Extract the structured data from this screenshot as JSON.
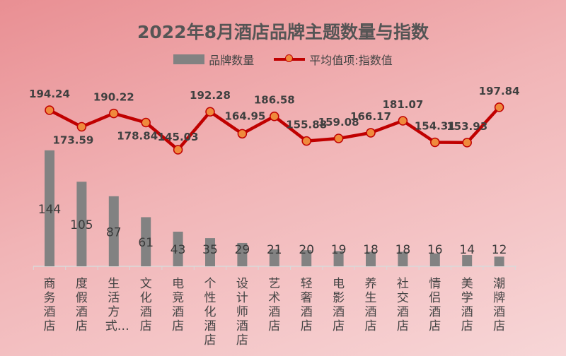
{
  "chart_data": {
    "type": "bar+line",
    "title": "2022年8月酒店品牌主题数量与指数",
    "legend": [
      "品牌数量",
      "平均值项:指数值"
    ],
    "legend_position": "top",
    "categories": [
      "商务酒店",
      "度假酒店",
      "生活方式…",
      "文化酒店",
      "电竞酒店",
      "个性化酒店",
      "设计师酒店",
      "艺术酒店",
      "轻奢酒店",
      "电影酒店",
      "养生酒店",
      "社交酒店",
      "情侣酒店",
      "美学酒店",
      "潮牌酒店"
    ],
    "series": [
      {
        "name": "品牌数量",
        "type": "bar",
        "color": "#828282",
        "values": [
          144,
          105,
          87,
          61,
          43,
          35,
          29,
          21,
          20,
          19,
          18,
          18,
          16,
          14,
          12
        ]
      },
      {
        "name": "平均值项:指数值",
        "type": "line",
        "color": "#c00000",
        "marker_color": "#ef8a3c",
        "values": [
          194.24,
          173.59,
          190.22,
          178.84,
          145.03,
          192.28,
          164.95,
          186.58,
          155.88,
          159.08,
          166.17,
          181.07,
          154.31,
          153.93,
          197.84
        ]
      }
    ],
    "grid": false
  }
}
